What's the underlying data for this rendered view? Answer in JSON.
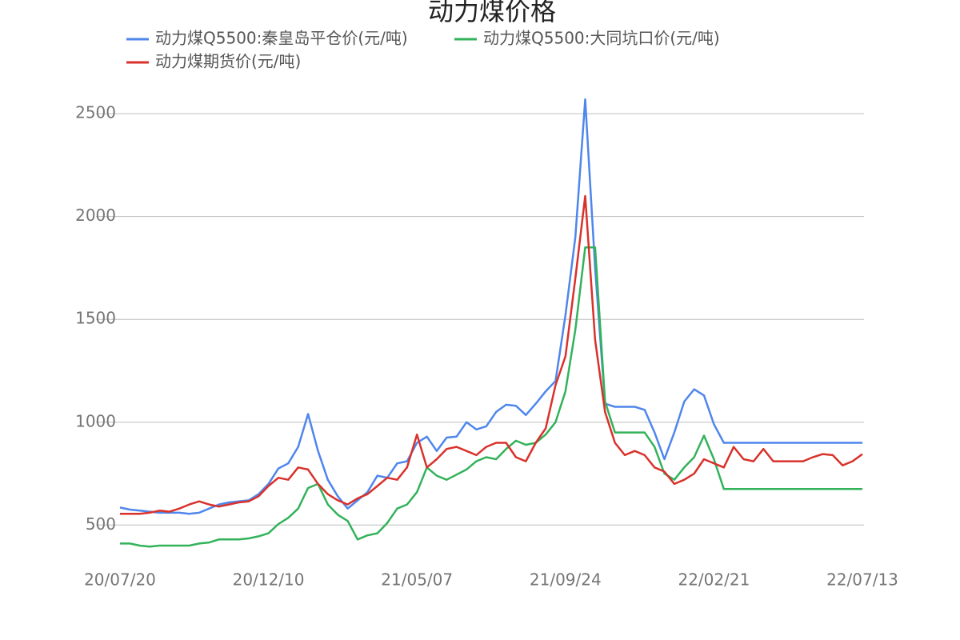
{
  "chart_data": {
    "type": "line",
    "title": "动力煤价格",
    "categories": [
      "20/07/20",
      null,
      null,
      null,
      null,
      null,
      null,
      null,
      null,
      null,
      null,
      null,
      null,
      null,
      null,
      "20/12/10",
      null,
      null,
      null,
      null,
      null,
      null,
      null,
      null,
      null,
      null,
      null,
      null,
      null,
      null,
      "21/05/07",
      null,
      null,
      null,
      null,
      null,
      null,
      null,
      null,
      null,
      null,
      null,
      null,
      null,
      null,
      "21/09/24",
      null,
      null,
      null,
      null,
      null,
      null,
      null,
      null,
      null,
      null,
      null,
      null,
      null,
      null,
      "22/02/21",
      null,
      null,
      null,
      null,
      null,
      null,
      null,
      null,
      null,
      null,
      null,
      null,
      null,
      null,
      "22/07/13"
    ],
    "series": [
      {
        "name": "动力煤Q5500:秦皇岛平仓价(元/吨)",
        "color": "#4f86ec",
        "values": [
          585,
          575,
          570,
          565,
          560,
          560,
          560,
          555,
          560,
          580,
          600,
          610,
          615,
          620,
          650,
          700,
          775,
          800,
          880,
          1040,
          860,
          720,
          640,
          580,
          620,
          660,
          740,
          730,
          800,
          810,
          900,
          930,
          860,
          925,
          930,
          1000,
          965,
          980,
          1050,
          1085,
          1080,
          1035,
          1090,
          1150,
          1200,
          1520,
          1900,
          2570,
          1750,
          1090,
          1075,
          1075,
          1075,
          1060,
          950,
          820,
          950,
          1100,
          1160,
          1130,
          990,
          900,
          900,
          900,
          900,
          900,
          900,
          900,
          900,
          900,
          900,
          900,
          900,
          900,
          900,
          900
        ]
      },
      {
        "name": "动力煤Q5500:大同坑口价(元/吨)",
        "color": "#32b25a",
        "values": [
          410,
          410,
          400,
          395,
          400,
          400,
          400,
          400,
          410,
          415,
          430,
          430,
          430,
          435,
          445,
          460,
          505,
          535,
          580,
          680,
          700,
          600,
          550,
          520,
          430,
          450,
          460,
          510,
          580,
          600,
          660,
          780,
          740,
          720,
          745,
          770,
          810,
          830,
          820,
          870,
          910,
          890,
          900,
          940,
          1000,
          1150,
          1450,
          1850,
          1850,
          1100,
          950,
          950,
          950,
          950,
          880,
          750,
          720,
          780,
          830,
          935,
          820,
          675,
          675,
          675,
          675,
          675,
          675,
          675,
          675,
          675,
          675,
          675,
          675,
          675,
          675,
          675
        ]
      },
      {
        "name": "动力煤期货价(元/吨)",
        "color": "#d9312b",
        "values": [
          555,
          555,
          555,
          560,
          570,
          565,
          580,
          600,
          615,
          600,
          590,
          600,
          610,
          615,
          640,
          690,
          730,
          720,
          780,
          770,
          700,
          650,
          620,
          600,
          630,
          650,
          690,
          730,
          720,
          780,
          940,
          780,
          820,
          870,
          880,
          860,
          840,
          880,
          900,
          900,
          830,
          810,
          900,
          970,
          1180,
          1320,
          1700,
          2100,
          1400,
          1050,
          900,
          840,
          860,
          840,
          780,
          760,
          700,
          720,
          750,
          820,
          800,
          780,
          880,
          820,
          810,
          870,
          810,
          810,
          810,
          810,
          830,
          845,
          840,
          790,
          810,
          845
        ]
      }
    ],
    "ylim": [
      330,
      2660
    ],
    "yticks": [
      500,
      1000,
      1500,
      2000,
      2500
    ],
    "grid": true
  }
}
